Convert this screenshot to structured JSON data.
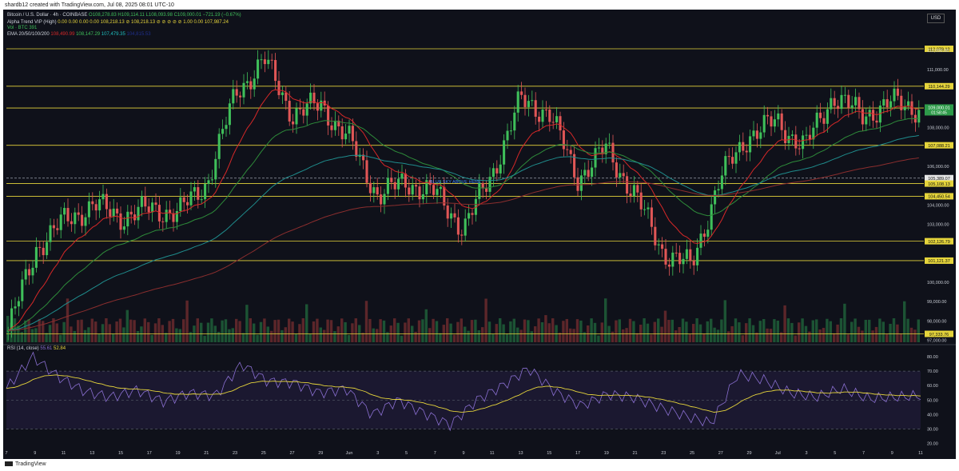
{
  "caption": "shardb12 created with TradingView.com, Jul 08, 2025 08:01 UTC-10",
  "legend": {
    "symbol": "Bitcoin / U.S. Dollar · 4h · COINBASE",
    "ohlc": "O108,278.83 H109,114.11 L108,093.98 C109,000.01 −721.19 (−0.67%)",
    "alpha_trend": "Alpha Trend VIP (High)",
    "alpha_vals": "0.00 0.00 0.00 0.00 108,218.13 ⊘ 108,218.13 ⊘ ⊘ ⊘ ⊘ ⊘ 1.00 0.00 107,987.24",
    "vol": "Vol · BTC 391",
    "ema_label": "EMA 20/50/100/200",
    "ema_vals": [
      "108,490.99",
      "108,147.29",
      "107,479.35",
      "104,815.53"
    ],
    "rsi_label": "RSI (14, close)",
    "rsi_vals": [
      "55.61",
      "52.84"
    ],
    "annotation": "BLUE SKY ABOVE HERE",
    "currency": "USD"
  },
  "colors": {
    "bg": "#0f111a",
    "up": "#3fbf5a",
    "down": "#e05656",
    "level": "#e5d43b",
    "ema20": "#d62828",
    "ema50": "#2e8b3a",
    "ema100": "#1f8c8c",
    "ema200": "#8b2e2e",
    "rsi": "#8a6fd1",
    "rsi_ma": "#e5d43b"
  },
  "footer": "TradingView",
  "chart_data": {
    "type": "candlestick",
    "x": [
      "May 5",
      "May 7",
      "May 9",
      "May 11",
      "May 13",
      "May 15",
      "May 17",
      "May 19",
      "May 21",
      "May 23",
      "May 25",
      "May 27",
      "May 29",
      "Jun 1",
      "Jun 3",
      "Jun 5",
      "Jun 7",
      "Jun 9",
      "Jun 11",
      "Jun 13",
      "Jun 15",
      "Jun 17",
      "Jun 19",
      "Jun 21",
      "Jun 23",
      "Jun 25",
      "Jun 27",
      "Jun 29",
      "Jul 1",
      "Jul 3",
      "Jul 5",
      "Jul 7",
      "Jul 8"
    ],
    "close": [
      97500,
      101800,
      103200,
      104000,
      103400,
      103800,
      103600,
      105200,
      109800,
      111500,
      108700,
      109200,
      107300,
      104500,
      105200,
      104600,
      102800,
      105600,
      109400,
      108800,
      105400,
      106900,
      104600,
      101600,
      100800,
      105300,
      107600,
      108300,
      107000,
      109700,
      108600,
      109300,
      109000
    ],
    "price_axis": [
      "112,000.00",
      "111,000.00",
      "109,000.00",
      "108,000.00",
      "106,000.00",
      "104,000.00",
      "103,000.00",
      "100,000.00",
      "99,000.00",
      "98,000.00",
      "97,000.00"
    ],
    "price_range": [
      96900,
      112700
    ],
    "levels": [
      "112,078.12",
      "110,144.29",
      "109,017.18",
      "107,088.21",
      "105,389.07",
      "105,108.13",
      "104,450.54",
      "102,126.79",
      "101,121.37",
      "97,333.76"
    ],
    "level_values": [
      112078.12,
      110144.29,
      109017.18,
      107088.21,
      105389.07,
      105108.13,
      104450.54,
      102126.79,
      101121.37,
      97333.76
    ],
    "last_price": "109,000.01",
    "countdown": "01:58:45",
    "x_ticks": [
      "7",
      "9",
      "11",
      "13",
      "15",
      "17",
      "19",
      "21",
      "23",
      "25",
      "27",
      "29",
      "Jun",
      "3",
      "5",
      "7",
      "9",
      "11",
      "13",
      "15",
      "17",
      "19",
      "21",
      "23",
      "25",
      "27",
      "29",
      "Jul",
      "3",
      "5",
      "7",
      "9",
      "11"
    ],
    "rsi_ticks": [
      "80.00",
      "70.00",
      "60.00",
      "50.00",
      "40.00",
      "30.00",
      "20.00"
    ],
    "rsi_range": [
      17,
      85
    ],
    "rsi_bands": [
      70,
      50,
      30
    ],
    "rsi": [
      58,
      80,
      66,
      56,
      52,
      57,
      49,
      55,
      53,
      75,
      63,
      62,
      55,
      58,
      40,
      50,
      41,
      33,
      50,
      60,
      72,
      56,
      46,
      54,
      52,
      45,
      39,
      34,
      68,
      64,
      55,
      52,
      58,
      51,
      52,
      53
    ]
  }
}
